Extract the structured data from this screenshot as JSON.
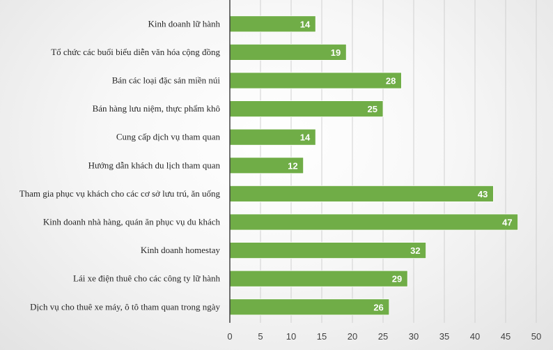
{
  "chart_data": {
    "type": "bar",
    "orientation": "horizontal",
    "categories": [
      "Kinh doanh lữ hành",
      "Tổ chức các buổi biểu diễn văn hóa cộng đồng",
      "Bán các loại đặc sản miền núi",
      "Bán hàng lưu niệm, thực phẩm khô",
      "Cung cấp dịch vụ tham quan",
      "Hướng dẫn khách du lịch tham quan",
      "Tham gia phục vụ khách cho các cơ sở lưu trú, ăn uống",
      "Kinh doanh nhà hàng, quán ăn phục vụ du khách",
      "Kinh doanh homestay",
      "Lái xe điện thuê cho các công ty lữ hành",
      "Dịch vụ cho thuê xe máy, ô tô tham quan trong ngày"
    ],
    "values": [
      14,
      19,
      28,
      25,
      14,
      12,
      43,
      47,
      32,
      29,
      26
    ],
    "xlim": [
      0,
      50
    ],
    "xticks": [
      0,
      5,
      10,
      15,
      20,
      25,
      30,
      35,
      40,
      45,
      50
    ],
    "grid": true,
    "data_labels": true,
    "title": "",
    "xlabel": "",
    "ylabel": "",
    "colors": {
      "bar": "#70ad47",
      "bar_border": "#ffffff",
      "grid": "#d0d0d0",
      "axis": "#404040"
    }
  }
}
